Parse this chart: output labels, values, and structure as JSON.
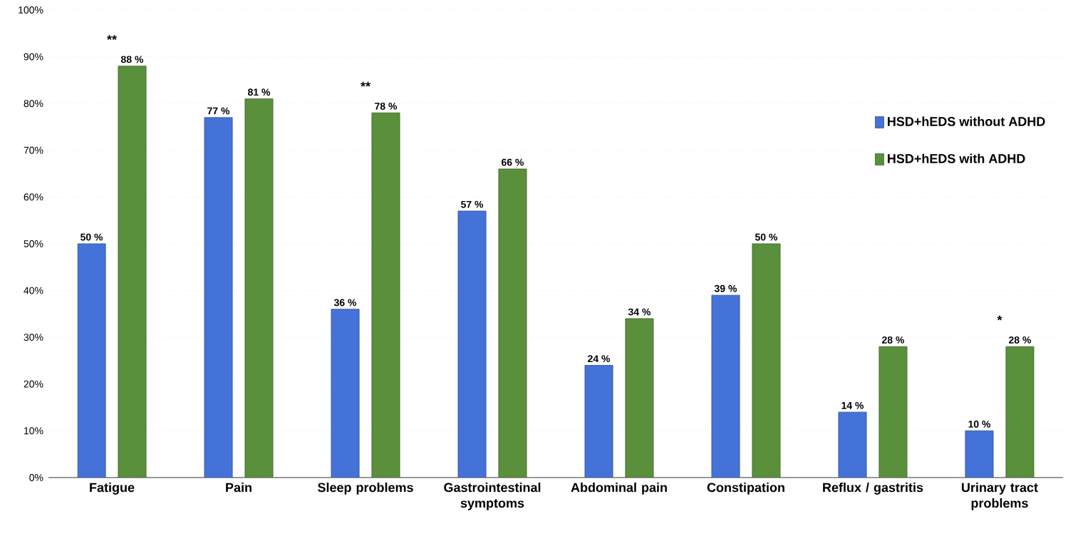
{
  "chart_data": {
    "type": "bar",
    "categories": [
      "Fatigue",
      "Pain",
      "Sleep problems",
      "Gastrointestinal symptoms",
      "Abdominal pain",
      "Constipation",
      "Reflux / gastritis",
      "Urinary tract problems"
    ],
    "series": [
      {
        "name": "HSD+hEDS without ADHD",
        "color": "#4472d8",
        "values": [
          50,
          77,
          36,
          57,
          24,
          39,
          14,
          10
        ],
        "value_labels": [
          "50 %",
          "77 %",
          "36 %",
          "57 %",
          "24 %",
          "39 %",
          "14 %",
          "10 %"
        ]
      },
      {
        "name": "HSD+hEDS with ADHD",
        "color": "#5a8f3c",
        "values": [
          88,
          81,
          78,
          66,
          34,
          50,
          28,
          28
        ],
        "value_labels": [
          "88 %",
          "81 %",
          "78 %",
          "66 %",
          "34 %",
          "50 %",
          "28 %",
          "28 %"
        ]
      }
    ],
    "ylim": [
      0,
      100
    ],
    "yticks": [
      {
        "value": 0,
        "label": "0%"
      },
      {
        "value": 10,
        "label": "10%"
      },
      {
        "value": 20,
        "label": "20%"
      },
      {
        "value": 30,
        "label": "30%"
      },
      {
        "value": 40,
        "label": "40%"
      },
      {
        "value": 50,
        "label": "50%"
      },
      {
        "value": 60,
        "label": "60%"
      },
      {
        "value": 70,
        "label": "70%"
      },
      {
        "value": 80,
        "label": "80%"
      },
      {
        "value": 90,
        "label": "90%"
      },
      {
        "value": 100,
        "label": "100%"
      }
    ],
    "grid": "y",
    "legend": "right",
    "annotations": [
      "**",
      "**",
      "*"
    ]
  }
}
